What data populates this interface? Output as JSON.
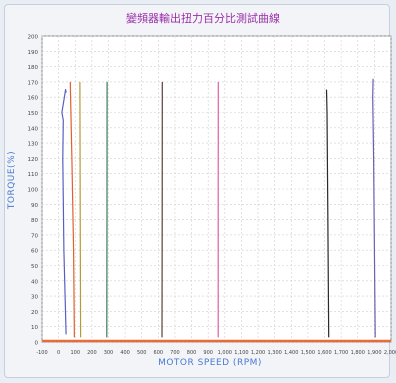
{
  "chart_data": {
    "type": "line",
    "title": "變頻器輸出扭力百分比測試曲線",
    "xlabel": "MOTOR SPEED (RPM)",
    "ylabel": "TORQUE(%)",
    "xlim": [
      -100,
      2000
    ],
    "ylim": [
      0,
      200
    ],
    "x_ticks": [
      "-100",
      "0",
      "100",
      "200",
      "300",
      "400",
      "500",
      "600",
      "700",
      "800",
      "900",
      "1,000",
      "1,100",
      "1,200",
      "1,300",
      "1,400",
      "1,500",
      "1,600",
      "1,700",
      "1,800",
      "1,900",
      "2,000"
    ],
    "y_ticks": [
      "0",
      "10",
      "20",
      "30",
      "40",
      "50",
      "60",
      "70",
      "80",
      "90",
      "100",
      "110",
      "120",
      "130",
      "140",
      "150",
      "160",
      "170",
      "180",
      "190",
      "200"
    ],
    "grid": true,
    "series": [
      {
        "color": "#5a5fbf",
        "x": [
          45,
          32,
          25,
          28,
          20,
          35,
          42,
          45
        ],
        "y": [
          5,
          60,
          120,
          145,
          150,
          160,
          165,
          163
        ]
      },
      {
        "color": "#e0602a",
        "x": [
          95,
          90,
          80,
          72,
          70
        ],
        "y": [
          3,
          60,
          120,
          160,
          170
        ]
      },
      {
        "color": "#b59a3a",
        "x": [
          132,
          130,
          128
        ],
        "y": [
          3,
          85,
          170
        ]
      },
      {
        "color": "#3a7a55",
        "x": [
          290,
          291,
          292
        ],
        "y": [
          3,
          85,
          170
        ]
      },
      {
        "color": "#5a3f3a",
        "x": [
          622,
          623,
          624
        ],
        "y": [
          3,
          85,
          170
        ]
      },
      {
        "color": "#e060a0",
        "x": [
          960,
          960,
          961
        ],
        "y": [
          3,
          85,
          170
        ]
      },
      {
        "color": "#2a2a2a",
        "x": [
          1625,
          1620,
          1615,
          1612
        ],
        "y": [
          3,
          85,
          150,
          165
        ]
      },
      {
        "color": "#6a5fb0",
        "x": [
          1905,
          1900,
          1895,
          1890,
          1892
        ],
        "y": [
          3,
          60,
          120,
          160,
          172
        ]
      }
    ]
  }
}
